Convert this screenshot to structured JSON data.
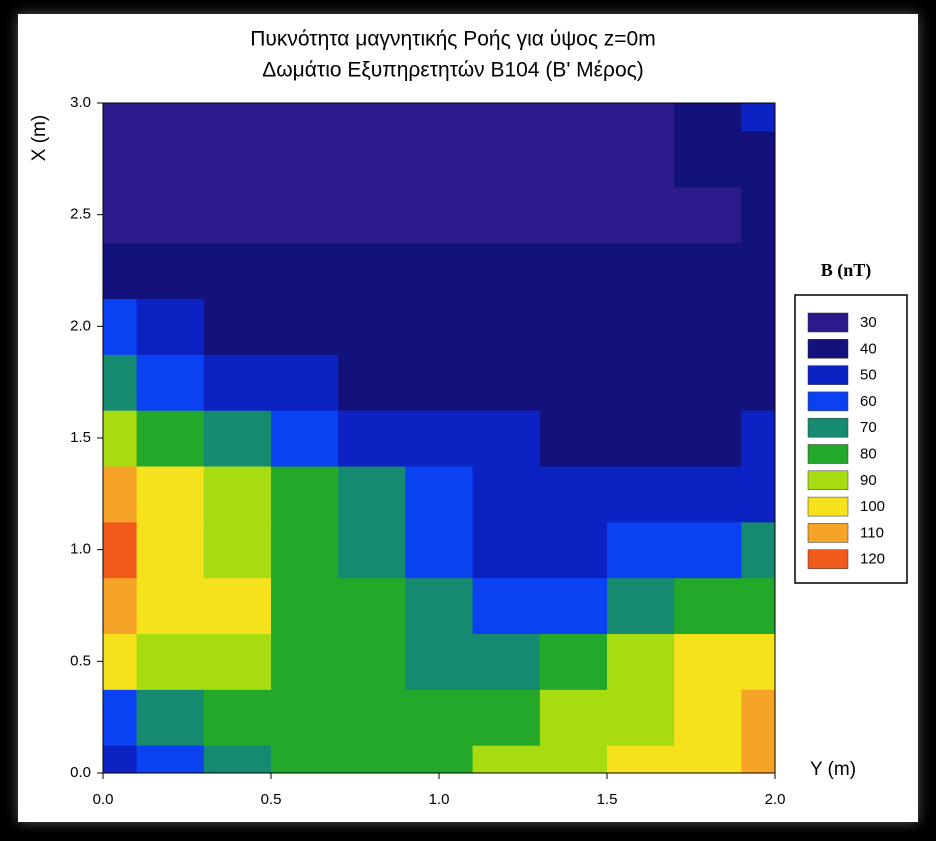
{
  "chart_data": {
    "type": "contour",
    "title": "Πυκνότητα μαγνητικής Ροής για ύψος z=0m",
    "subtitle": "Δωμάτιο Εξυπηρετητών B104 (B' Μέρος)",
    "xlabel": "Y (m)",
    "ylabel": "X (m)",
    "xlim": [
      0,
      2
    ],
    "ylim": [
      0,
      3
    ],
    "xticks": [
      {
        "value": 0,
        "label": "0.0"
      },
      0.5,
      {
        "value": 1,
        "label": "1.0"
      },
      1.5,
      {
        "value": 2,
        "label": "2.0"
      }
    ],
    "yticks": [
      {
        "value": 0,
        "label": "0.0"
      },
      0.5,
      {
        "value": 1,
        "label": "1.0"
      },
      1.5,
      {
        "value": 2,
        "label": "2.0"
      },
      2.5,
      {
        "value": 3,
        "label": "3.0"
      }
    ],
    "x": [
      0,
      0.2,
      0.4,
      0.6,
      0.8,
      1,
      1.2,
      1.4,
      1.6,
      1.8,
      2
    ],
    "y": [
      0,
      0.25,
      0.5,
      0.75,
      1,
      1.25,
      1.5,
      1.75,
      2,
      2.25,
      2.5,
      2.75,
      3
    ],
    "z": [
      [
        55,
        60,
        72,
        80,
        85,
        88,
        90,
        95,
        100,
        108,
        115
      ],
      [
        68,
        75,
        80,
        82,
        82,
        82,
        85,
        90,
        98,
        105,
        110
      ],
      [
        100,
        95,
        98,
        88,
        82,
        78,
        78,
        85,
        92,
        100,
        105
      ],
      [
        112,
        102,
        100,
        88,
        80,
        72,
        65,
        68,
        75,
        82,
        88
      ],
      [
        120,
        105,
        95,
        85,
        78,
        65,
        58,
        58,
        62,
        68,
        75
      ],
      [
        110,
        100,
        90,
        80,
        70,
        60,
        55,
        52,
        52,
        55,
        58
      ],
      [
        95,
        85,
        75,
        65,
        58,
        52,
        50,
        48,
        48,
        48,
        50
      ],
      [
        78,
        68,
        58,
        52,
        48,
        46,
        46,
        46,
        46,
        46,
        47
      ],
      [
        62,
        55,
        48,
        45,
        43,
        42,
        42,
        42,
        42,
        42,
        43
      ],
      [
        48,
        44,
        42,
        40,
        40,
        40,
        40,
        40,
        40,
        40,
        42
      ],
      [
        38,
        36,
        35,
        35,
        35,
        35,
        35,
        35,
        36,
        38,
        42
      ],
      [
        32,
        32,
        32,
        32,
        32,
        32,
        32,
        33,
        35,
        40,
        45
      ],
      [
        30,
        30,
        30,
        30,
        30,
        30,
        30,
        32,
        38,
        45,
        55
      ]
    ],
    "legend_title": "B (nT)",
    "levels": [
      30,
      40,
      50,
      60,
      70,
      80,
      90,
      100,
      110,
      120
    ],
    "level_colors": [
      "#2b1a8c",
      "#13117c",
      "#0d22c2",
      "#0a42f2",
      "#168a70",
      "#24a82a",
      "#a8dc12",
      "#f6e21c",
      "#f5a427",
      "#f05a1c"
    ]
  }
}
